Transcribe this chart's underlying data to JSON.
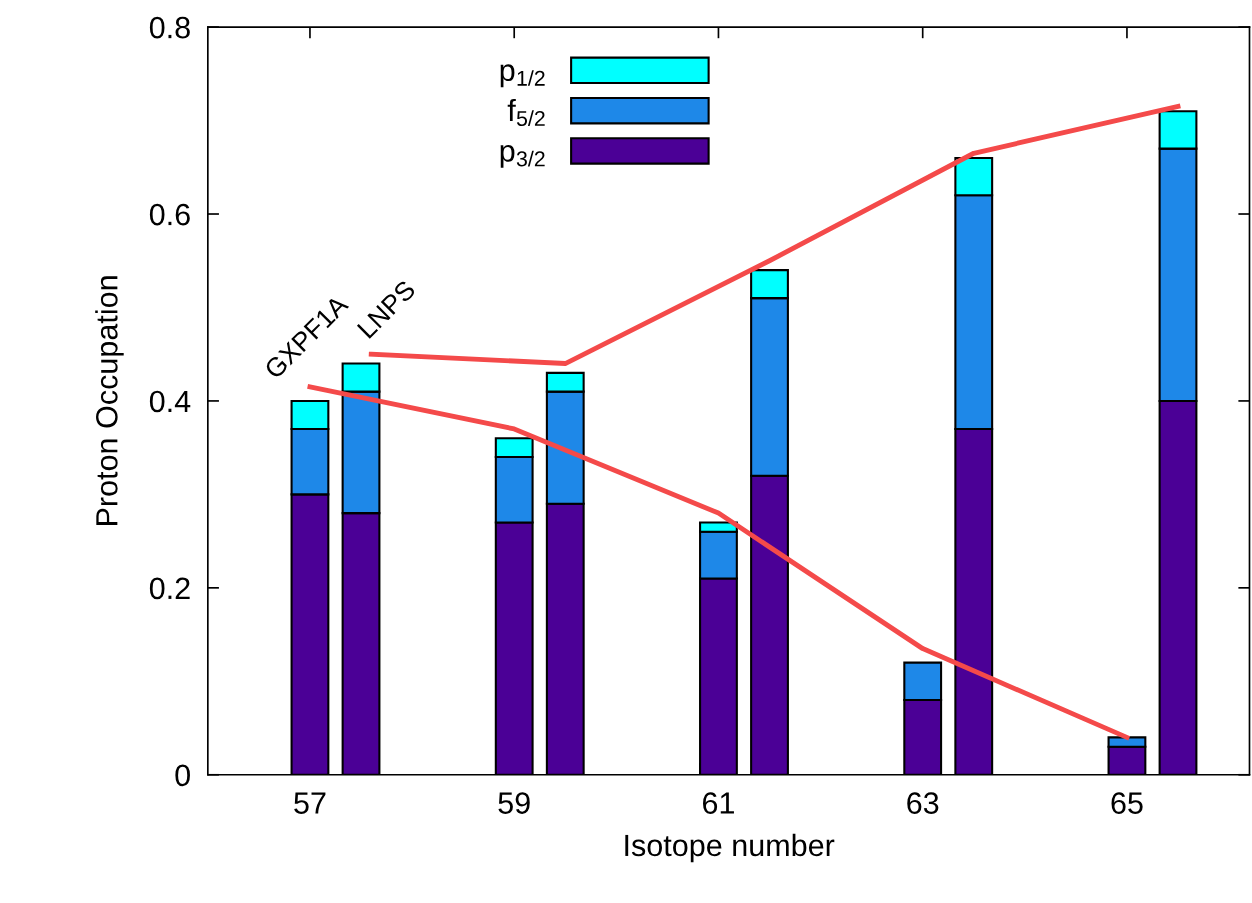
{
  "chart_data": {
    "type": "bar",
    "xlabel": "Isotope number",
    "ylabel": "Proton Occupation",
    "stacked": true,
    "legend": "top",
    "grid": false,
    "xlim": [
      56,
      66.2
    ],
    "xticks": [
      57,
      59,
      61,
      63,
      65
    ],
    "ylim": [
      0,
      0.8
    ],
    "yticks": [
      0,
      0.2,
      0.4,
      0.6,
      0.8
    ],
    "annotations": [
      {
        "text": "GXPF1A",
        "x": 57,
        "y": 0.4
      },
      {
        "text": "LNPS",
        "x": 57.5,
        "y": 0.44
      }
    ],
    "x": [
      57,
      57.5,
      59,
      59.5,
      61,
      61.5,
      63,
      63.5,
      65,
      65.5
    ],
    "series": [
      {
        "name": "p$_{3/2}$",
        "color": "#4b0096",
        "values": [
          0.3,
          0.28,
          0.27,
          0.29,
          0.21,
          0.32,
          0.08,
          0.37,
          0.03,
          0.4
        ]
      },
      {
        "name": "f$_{5/2}$",
        "color": "#1e88e8",
        "values": [
          0.07,
          0.13,
          0.07,
          0.12,
          0.05,
          0.19,
          0.04,
          0.25,
          0.01,
          0.27
        ]
      },
      {
        "name": "p$_{1/2}$",
        "color": "#00ffff",
        "values": [
          0.03,
          0.03,
          0.02,
          0.02,
          0.01,
          0.03,
          null,
          0.04,
          null,
          0.04
        ]
      },
      {
        "type": "line",
        "color": "#f44a4a",
        "x": [
          57,
          59,
          61,
          63,
          65
        ],
        "values": [
          0.415,
          0.37,
          0.28,
          0.135,
          0.04
        ]
      },
      {
        "type": "line",
        "color": "#f44a4a",
        "x": [
          57.6,
          59.5,
          61.5,
          63.5,
          65.5
        ],
        "values": [
          0.45,
          0.44,
          0.55,
          0.665,
          0.715
        ]
      }
    ]
  }
}
